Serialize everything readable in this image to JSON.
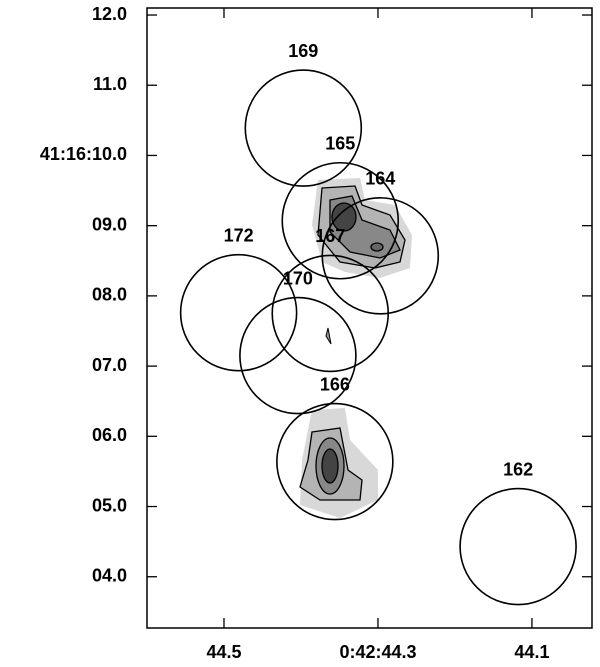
{
  "chart_data": {
    "type": "scatter",
    "labels": [
      "169",
      "165",
      "164",
      "167",
      "172",
      "170",
      "166",
      "162"
    ],
    "x": [
      44.397,
      44.349,
      44.297,
      44.362,
      44.481,
      44.404,
      44.356,
      44.118
    ],
    "values": [
      10.39,
      9.07,
      8.57,
      7.75,
      7.76,
      7.15,
      5.64,
      4.43
    ],
    "color": "#000000",
    "xlim": [
      44.6,
      44.022
    ],
    "ylim": [
      3.27,
      12.1
    ],
    "xticks": [
      44.5,
      {
        "value": 44.3,
        "label": "0:42:44.3"
      },
      44.1
    ],
    "yticks": [
      {
        "value": 12,
        "label": "12.0"
      },
      {
        "value": 11,
        "label": "11.0"
      },
      {
        "value": 10,
        "label": "41:16:10.0"
      },
      {
        "value": 9,
        "label": "09.0"
      },
      {
        "value": 8,
        "label": "08.0"
      },
      {
        "value": 7,
        "label": "07.0"
      },
      {
        "value": 6,
        "label": "06.0"
      },
      {
        "value": 5,
        "label": "05.0"
      },
      {
        "value": 4,
        "label": "04.0"
      }
    ]
  }
}
